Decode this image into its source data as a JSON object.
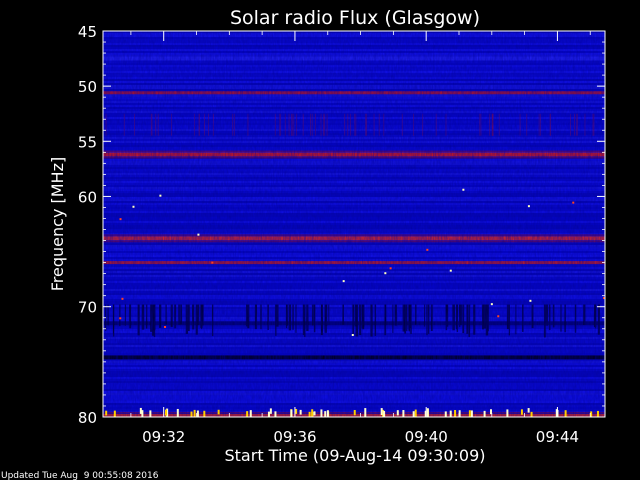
{
  "chart_data": {
    "type": "heatmap",
    "title": "Solar radio Flux (Glasgow)",
    "xlabel": "Start Time (09-Aug-14 09:30:09)",
    "ylabel": "Frequency [MHz]",
    "x_ticks": [
      "09:32",
      "09:36",
      "09:40",
      "09:44"
    ],
    "x_tick_minutes": [
      32,
      36,
      40,
      44
    ],
    "xlim_minutes": [
      30.15,
      45.45
    ],
    "y_ticks": [
      45,
      50,
      55,
      60,
      70,
      80
    ],
    "ylim": [
      45,
      80
    ],
    "y_axis": "inverted",
    "background_level": "blue",
    "bands": [
      {
        "freq": 47.5,
        "level": "medium",
        "color": "#2828ff"
      },
      {
        "freq": 50.6,
        "level": "high",
        "color": "#d01818"
      },
      {
        "freq": 56.2,
        "level": "very high",
        "color": "#ff2000"
      },
      {
        "freq": 63.8,
        "level": "very high",
        "color": "#ff3010"
      },
      {
        "freq": 66.0,
        "level": "high",
        "color": "#e02010"
      },
      {
        "freq": 71.5,
        "level": "low",
        "color": "#000060"
      },
      {
        "freq": 74.6,
        "level": "low",
        "color": "#000000"
      },
      {
        "freq": 79.9,
        "level": "very high",
        "color": "#ff3000"
      }
    ],
    "colors": {
      "background": "#000000",
      "low": "#00007a",
      "medium": "#1010e8",
      "high": "#ff2000",
      "peak": "#ffffd0"
    }
  },
  "footer": {
    "updated": "Updated Tue Aug  9 00:55:08 2016"
  }
}
